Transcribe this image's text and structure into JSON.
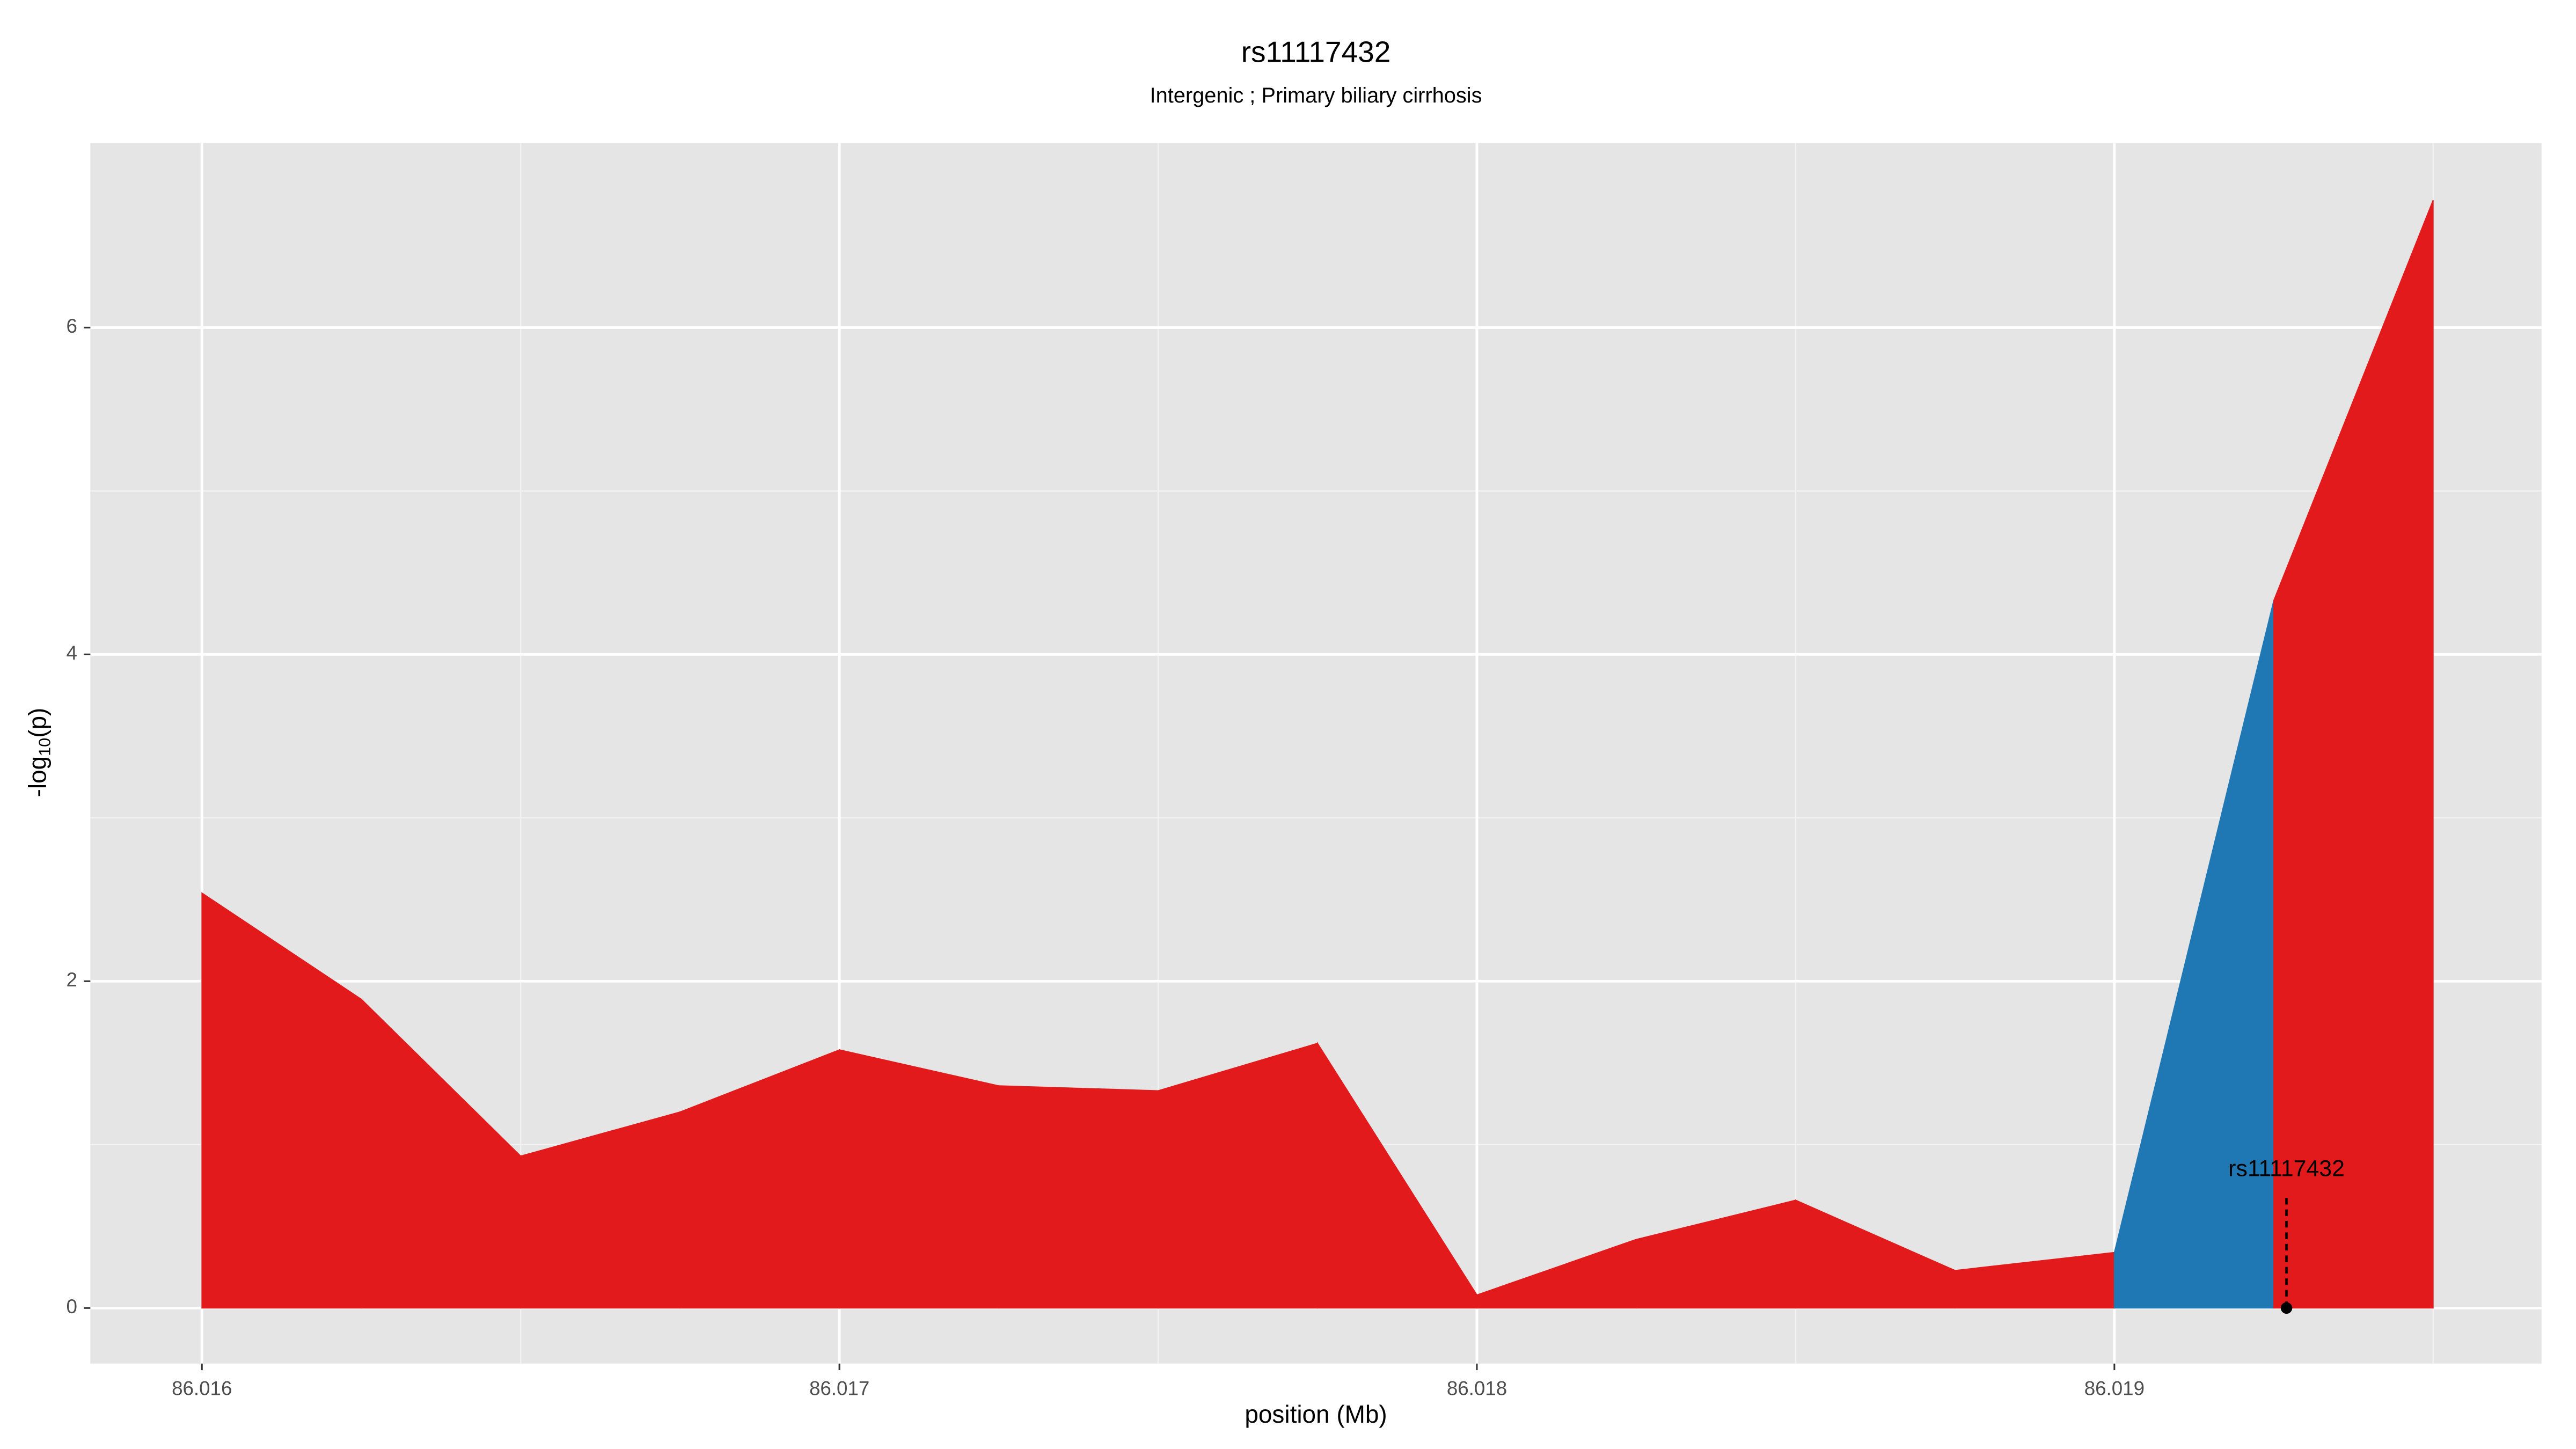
{
  "chart_data": {
    "type": "area",
    "title": "rs11117432",
    "subtitle": "Intergenic ; Primary biliary cirrhosis",
    "xlabel": "position (Mb)",
    "ylabel": [
      "-log",
      "10",
      "(p)"
    ],
    "x": [
      86.016,
      86.01625,
      86.0165,
      86.01675,
      86.017,
      86.01725,
      86.0175,
      86.01775,
      86.018,
      86.01825,
      86.0185,
      86.01875,
      86.019,
      86.01925,
      86.0195
    ],
    "series": [
      {
        "values": [
          2.54,
          1.89,
          0.93,
          1.2,
          1.58,
          1.36,
          1.33,
          1.62,
          0.08,
          0.42,
          0.66,
          0.23,
          0.34,
          4.33,
          6.78
        ],
        "colors": [
          "#e31a1c",
          "#e31a1c",
          "#e31a1c",
          "#e31a1c",
          "#e31a1c",
          "#e31a1c",
          "#e31a1c",
          "#e31a1c",
          "#e31a1c",
          "#e31a1c",
          "#e31a1c",
          "#e31a1c",
          "#1f78b4",
          "#e31a1c"
        ]
      }
    ],
    "annotation": {
      "text": "rs11117432",
      "x": 86.01927,
      "y": 0
    },
    "xlim": [
      86.015825,
      86.01967
    ],
    "ylim": [
      -0.34,
      7.13
    ],
    "xticks": [
      86.016,
      86.017,
      86.018,
      86.019
    ],
    "yticks": [
      0,
      2,
      4,
      6
    ],
    "grid": true,
    "minor_grid": true
  }
}
